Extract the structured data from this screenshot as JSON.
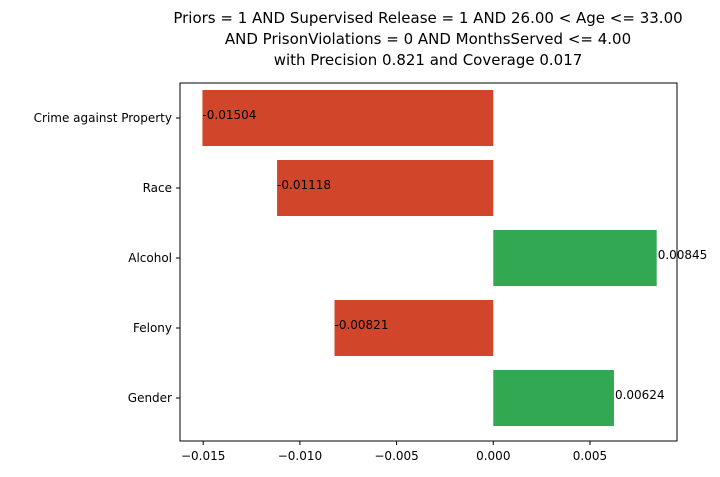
{
  "chart_data": {
    "type": "bar",
    "orientation": "horizontal",
    "title_lines": [
      "Priors = 1 AND Supervised Release = 1 AND 26.00 < Age <= 33.00",
      "AND PrisonViolations = 0 AND MonthsServed <= 4.00",
      "with Precision 0.821 and Coverage 0.017"
    ],
    "categories": [
      "Crime against Property",
      "Race",
      "Alcohol",
      "Felony",
      "Gender"
    ],
    "values": [
      -0.01504,
      -0.01118,
      0.00845,
      -0.00821,
      0.00624
    ],
    "value_labels": [
      "-0.01504",
      "-0.01118",
      "0.00845",
      "-0.00821",
      "0.00624"
    ],
    "xlim": [
      -0.0162,
      0.0095
    ],
    "xticks": [
      -0.015,
      -0.01,
      -0.005,
      0.0,
      0.005
    ],
    "xtick_labels": [
      "−0.015",
      "−0.010",
      "−0.005",
      "0.000",
      "0.005"
    ],
    "xlabel": "",
    "ylabel": "",
    "grid": false,
    "colors": {
      "positive": "#33a852",
      "negative": "#d1462a"
    }
  }
}
